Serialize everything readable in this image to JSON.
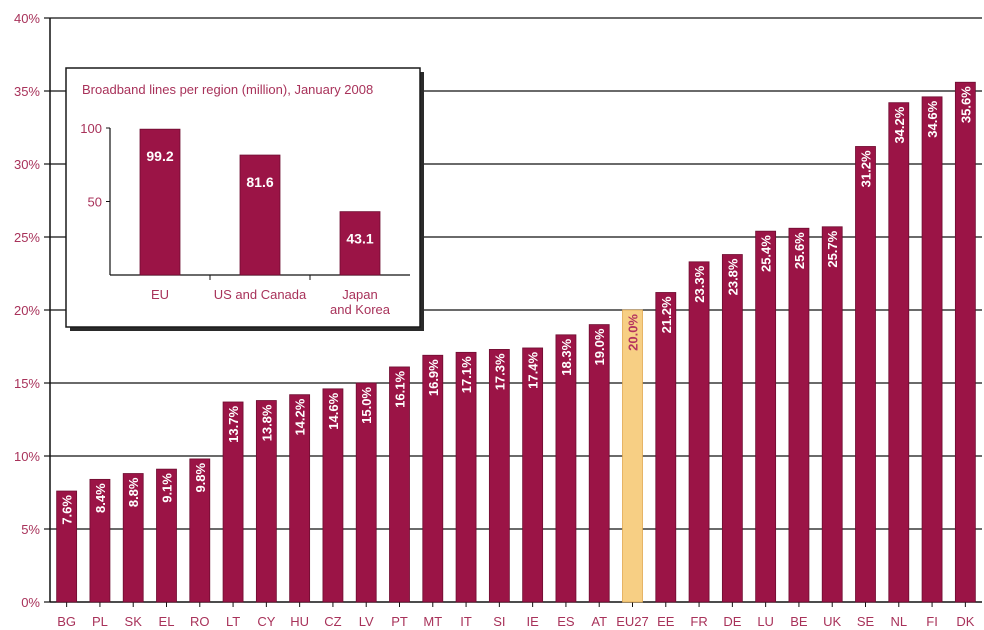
{
  "chart_data": [
    {
      "type": "bar",
      "title": "",
      "xlabel": "",
      "ylabel": "",
      "ylim": [
        0,
        40
      ],
      "yticks": [
        "0%",
        "5%",
        "10%",
        "15%",
        "20%",
        "25%",
        "30%",
        "35%",
        "40%"
      ],
      "grid": true,
      "categories": [
        "BG",
        "PL",
        "SK",
        "EL",
        "RO",
        "LT",
        "CY",
        "HU",
        "CZ",
        "LV",
        "PT",
        "MT",
        "IT",
        "SI",
        "IE",
        "ES",
        "AT",
        "EU27",
        "EE",
        "FR",
        "DE",
        "LU",
        "BE",
        "UK",
        "SE",
        "NL",
        "FI",
        "DK"
      ],
      "values": [
        7.6,
        8.4,
        8.8,
        9.1,
        9.8,
        13.7,
        13.8,
        14.2,
        14.6,
        15.0,
        16.1,
        16.9,
        17.1,
        17.3,
        17.4,
        18.3,
        19.0,
        20.0,
        21.2,
        23.3,
        23.8,
        25.4,
        25.6,
        25.7,
        31.2,
        34.2,
        34.6,
        35.6
      ],
      "value_labels": [
        "7.6%",
        "8.4%",
        "8.8%",
        "9.1%",
        "9.8%",
        "13.7%",
        "13.8%",
        "14.2%",
        "14.6%",
        "15.0%",
        "16.1%",
        "16.9%",
        "17.1%",
        "17.3%",
        "17.4%",
        "18.3%",
        "19.0%",
        "20.0%",
        "21.2%",
        "23.3%",
        "23.8%",
        "25.4%",
        "25.6%",
        "25.7%",
        "31.2%",
        "34.2%",
        "34.6%",
        "35.6%"
      ],
      "highlight_category": "EU27",
      "colors": {
        "bar": "#9b1446",
        "highlight": "#f7cf84",
        "text": "#a8325a"
      }
    },
    {
      "type": "bar",
      "title": "Broadband lines per region (million), January 2008",
      "ylim": [
        0,
        100
      ],
      "yticks": [
        "50",
        "100"
      ],
      "categories": [
        [
          "EU"
        ],
        [
          "US and Canada"
        ],
        [
          "Japan",
          "and Korea"
        ]
      ],
      "values": [
        99.2,
        81.6,
        43.1
      ],
      "value_labels": [
        "99.2",
        "81.6",
        "43.1"
      ],
      "colors": {
        "bar": "#9b1446",
        "text": "#a8325a"
      }
    }
  ]
}
